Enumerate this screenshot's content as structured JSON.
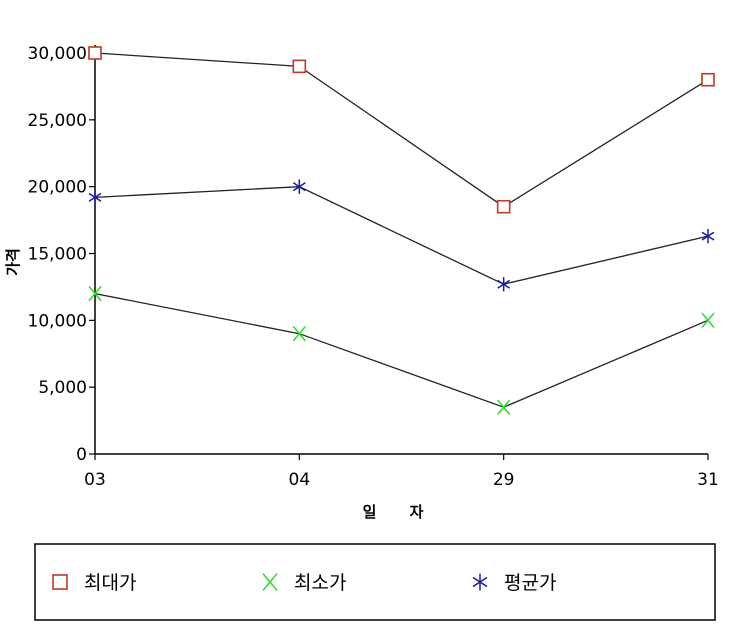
{
  "chart_data": {
    "type": "line",
    "title": "",
    "xlabel": "일 자",
    "ylabel": "가격",
    "categories": [
      "03",
      "04",
      "29",
      "31"
    ],
    "ylim": [
      0,
      30000
    ],
    "yticks": [
      0,
      5000,
      10000,
      15000,
      20000,
      25000,
      30000
    ],
    "ytick_labels": [
      "0",
      "5,000",
      "10,000",
      "15,000",
      "20,000",
      "25,000",
      "30,000"
    ],
    "grid": false,
    "legend_position": "bottom",
    "series": [
      {
        "name": "최대가",
        "marker": "square",
        "color": "#c0392b",
        "values": [
          30000,
          29000,
          18500,
          28000
        ]
      },
      {
        "name": "최소가",
        "marker": "x",
        "color": "#33dd33",
        "values": [
          12000,
          9000,
          3500,
          10000
        ]
      },
      {
        "name": "평균가",
        "marker": "asterisk",
        "color": "#1a1aa6",
        "values": [
          19200,
          20000,
          12700,
          16300
        ]
      }
    ]
  }
}
